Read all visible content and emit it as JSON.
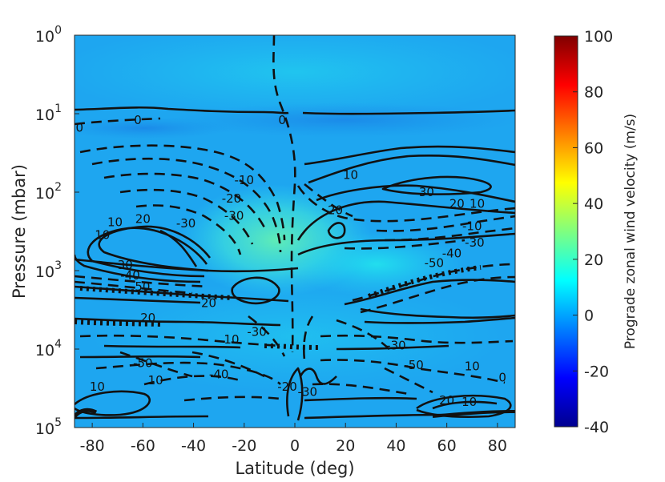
{
  "chart_data": {
    "type": "heatmap",
    "xlabel": "Latitude (deg)",
    "ylabel": "Pressure (mbar)",
    "xlim": [
      -87,
      87
    ],
    "ylim": [
      1,
      100000
    ],
    "y_scale": "log",
    "y_reversed": true,
    "x_ticks": [
      "-80",
      "-60",
      "-40",
      "-20",
      "0",
      "20",
      "40",
      "60",
      "80"
    ],
    "x_tick_values": [
      -80,
      -60,
      -40,
      -20,
      0,
      20,
      40,
      60,
      80
    ],
    "y_ticks": [
      {
        "base": "10",
        "exp": "0",
        "value": 1
      },
      {
        "base": "10",
        "exp": "1",
        "value": 10
      },
      {
        "base": "10",
        "exp": "2",
        "value": 100
      },
      {
        "base": "10",
        "exp": "3",
        "value": 1000
      },
      {
        "base": "10",
        "exp": "4",
        "value": 10000
      },
      {
        "base": "10",
        "exp": "5",
        "value": 100000
      }
    ],
    "colorbar": {
      "label": "Prograde zonal wind velocity (m/s)",
      "range": [
        -40,
        100
      ],
      "ticks": [
        "100",
        "80",
        "60",
        "40",
        "20",
        "0",
        "-20",
        "-40"
      ],
      "tick_values": [
        100,
        80,
        60,
        40,
        20,
        0,
        -20,
        -40
      ],
      "colormap": "jet"
    },
    "field_value_samples": [
      {
        "lat": 0,
        "p": 1,
        "u": 5
      },
      {
        "lat": 0,
        "p": 30,
        "u": -8
      },
      {
        "lat": 0,
        "p": 300,
        "u": 15
      },
      {
        "lat": 10,
        "p": 800,
        "u": 16
      },
      {
        "lat": 40,
        "p": 1500,
        "u": 12
      },
      {
        "lat": -60,
        "p": 10000,
        "u": 4
      },
      {
        "lat": 60,
        "p": 50000,
        "u": 3
      }
    ],
    "contour_labels": [
      {
        "text": "0",
        "lat": -62,
        "p": 12
      },
      {
        "text": "0",
        "lat": -85,
        "p": 15
      },
      {
        "text": "0",
        "lat": -5,
        "p": 12
      },
      {
        "text": "-10",
        "lat": -20,
        "p": 70
      },
      {
        "text": "-20",
        "lat": -25,
        "p": 120
      },
      {
        "text": "-30",
        "lat": -24,
        "p": 200
      },
      {
        "text": "-30",
        "lat": -43,
        "p": 250
      },
      {
        "text": "10",
        "lat": 22,
        "p": 60
      },
      {
        "text": "20",
        "lat": 16,
        "p": 170
      },
      {
        "text": "30",
        "lat": 52,
        "p": 100
      },
      {
        "text": "20",
        "lat": 64,
        "p": 140
      },
      {
        "text": "10",
        "lat": 72,
        "p": 140
      },
      {
        "text": "10",
        "lat": -71,
        "p": 240
      },
      {
        "text": "20",
        "lat": -60,
        "p": 220
      },
      {
        "text": "10",
        "lat": -76,
        "p": 350
      },
      {
        "text": "-10",
        "lat": 70,
        "p": 270
      },
      {
        "text": "-30",
        "lat": 71,
        "p": 440
      },
      {
        "text": "-40",
        "lat": 62,
        "p": 600
      },
      {
        "text": "-50",
        "lat": 55,
        "p": 800
      },
      {
        "text": "30",
        "lat": -67,
        "p": 850
      },
      {
        "text": "-40",
        "lat": -65,
        "p": 1150
      },
      {
        "text": "-50",
        "lat": -61,
        "p": 1600
      },
      {
        "text": "20",
        "lat": -34,
        "p": 2600
      },
      {
        "text": "20",
        "lat": -58,
        "p": 4000
      },
      {
        "text": "-30",
        "lat": -15,
        "p": 6000
      },
      {
        "text": "10",
        "lat": -25,
        "p": 7500
      },
      {
        "text": "-30",
        "lat": 40,
        "p": 9000
      },
      {
        "text": "-50",
        "lat": -60,
        "p": 15000
      },
      {
        "text": "-50",
        "lat": 47,
        "p": 16000
      },
      {
        "text": "10",
        "lat": 70,
        "p": 16500
      },
      {
        "text": "-40",
        "lat": -30,
        "p": 21000
      },
      {
        "text": "10",
        "lat": -78,
        "p": 30000
      },
      {
        "text": "-30",
        "lat": 5,
        "p": 35000
      },
      {
        "text": "-20",
        "lat": -3,
        "p": 30000
      },
      {
        "text": "0",
        "lat": 82,
        "p": 23000
      },
      {
        "text": "10",
        "lat": -55,
        "p": 25000
      },
      {
        "text": "20",
        "lat": 60,
        "p": 45000
      },
      {
        "text": "-10",
        "lat": 68,
        "p": 47000
      }
    ]
  }
}
